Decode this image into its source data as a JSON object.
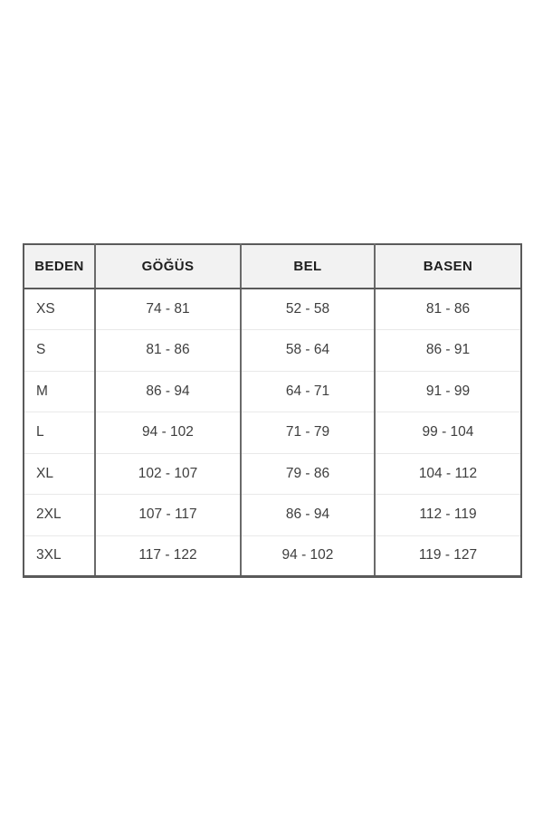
{
  "colors": {
    "page_background": "#ffffff",
    "table_border_dark": "#5a5a5a",
    "row_separator_light": "#e9e9e9",
    "header_background": "#f2f2f2",
    "header_text": "#1e1e1e",
    "cell_text": "#3e3e3e"
  },
  "chart_data": {
    "type": "table",
    "title": "",
    "columns": [
      "BEDEN",
      "GÖĞÜS",
      "BEL",
      "BASEN"
    ],
    "rows": [
      [
        "XS",
        "74 - 81",
        "52 - 58",
        "81 - 86"
      ],
      [
        "S",
        "81 - 86",
        "58 - 64",
        "86 - 91"
      ],
      [
        "M",
        "86 - 94",
        "64 - 71",
        "91 - 99"
      ],
      [
        "L",
        "94 - 102",
        "71 - 79",
        "99 - 104"
      ],
      [
        "XL",
        "102 - 107",
        "79 - 86",
        "104 - 112"
      ],
      [
        "2XL",
        "107 - 117",
        "86 - 94",
        "112 - 119"
      ],
      [
        "3XL",
        "117 - 122",
        "94 - 102",
        "119 - 127"
      ]
    ],
    "layout": {
      "legend": "none",
      "grid": "table-borders",
      "header_row_shaded": true
    }
  }
}
